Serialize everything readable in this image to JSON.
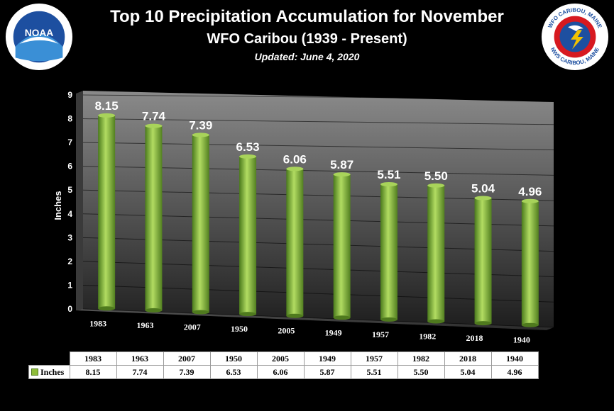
{
  "header": {
    "title": "Top 10 Precipitation Accumulation for November",
    "subtitle": "WFO Caribou  (1939 - Present)",
    "updated": "Updated:  June 4, 2020"
  },
  "logos": {
    "left": "NOAA",
    "right_top": "WFO CARIBOU, MAINE",
    "right_bottom": "NWS CARIBOU, MAINE"
  },
  "colors": {
    "bar": "#8fbd3a",
    "bar_dark": "#4f7a1e",
    "background": "#000000"
  },
  "chart_data": {
    "type": "bar",
    "title": "Top 10 Precipitation Accumulation for November",
    "ylabel": "Inches",
    "xlabel": "",
    "ylim": [
      0,
      9
    ],
    "yticks": [
      0,
      1,
      2,
      3,
      4,
      5,
      6,
      7,
      8,
      9
    ],
    "grid": true,
    "legend_position": "data-table",
    "categories": [
      "1983",
      "1963",
      "2007",
      "1950",
      "2005",
      "1949",
      "1957",
      "1982",
      "2018",
      "1940"
    ],
    "series": [
      {
        "name": "Inches",
        "values": [
          8.15,
          7.74,
          7.39,
          6.53,
          6.06,
          5.87,
          5.51,
          5.5,
          5.04,
          4.96
        ],
        "labels": [
          "8.15",
          "7.74",
          "7.39",
          "6.53",
          "6.06",
          "5.87",
          "5.51",
          "5.50",
          "5.04",
          "4.96"
        ]
      }
    ]
  }
}
